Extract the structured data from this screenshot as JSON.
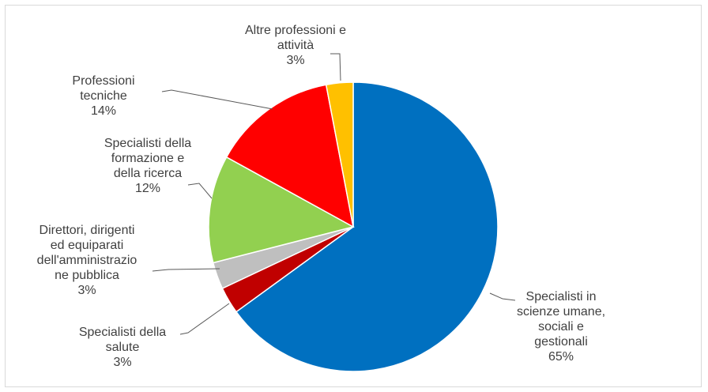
{
  "chart_data": {
    "type": "pie",
    "title": "",
    "start_angle_deg": 0,
    "direction": "clockwise",
    "slices": [
      {
        "lines": [
          "Specialisti in",
          "scienze umane,",
          "sociali e",
          "gestionali"
        ],
        "pct_label": "65%",
        "value": 65,
        "color": "#0070C0"
      },
      {
        "lines": [
          "Specialisti della",
          "salute"
        ],
        "pct_label": "3%",
        "value": 3,
        "color": "#C00000"
      },
      {
        "lines": [
          "Direttori, dirigenti",
          "ed equiparati",
          "dell'amministrazio",
          "ne pubblica"
        ],
        "pct_label": "3%",
        "value": 3,
        "color": "#BFBFBF"
      },
      {
        "lines": [
          "Specialisti della",
          "formazione e",
          "della ricerca"
        ],
        "pct_label": "12%",
        "value": 12,
        "color": "#92D050"
      },
      {
        "lines": [
          "Professioni",
          "tecniche"
        ],
        "pct_label": "14%",
        "value": 14,
        "color": "#FF0000"
      },
      {
        "lines": [
          "Altre professioni e",
          "attività"
        ],
        "pct_label": "3%",
        "value": 3,
        "color": "#FFC000"
      }
    ]
  }
}
